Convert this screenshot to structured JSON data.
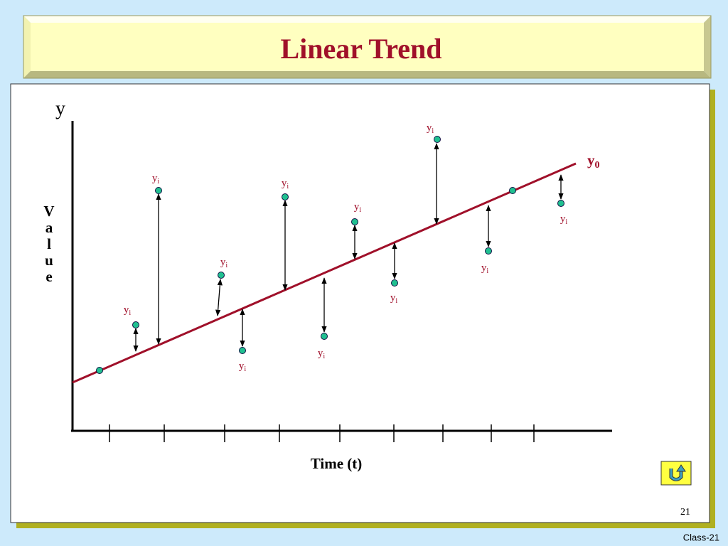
{
  "title": "Linear Trend",
  "axis": {
    "y_label": "y",
    "value_label": "Value",
    "x_label": "Time (t)"
  },
  "trend_label": {
    "text": "y",
    "subscript": "0"
  },
  "points": [
    {
      "text": "y",
      "subscript": "i"
    },
    {
      "text": "y",
      "subscript": "i"
    },
    {
      "text": "y",
      "subscript": "i"
    },
    {
      "text": "y",
      "subscript": "i"
    },
    {
      "text": "y",
      "subscript": "i"
    },
    {
      "text": "y",
      "subscript": "i"
    },
    {
      "text": "y",
      "subscript": "i"
    },
    {
      "text": "y",
      "subscript": "i"
    },
    {
      "text": "y",
      "subscript": "i"
    },
    {
      "text": "y",
      "subscript": "i"
    },
    {
      "text": "y",
      "subscript": "i"
    }
  ],
  "page_number": "21",
  "footer": "Class-21"
}
